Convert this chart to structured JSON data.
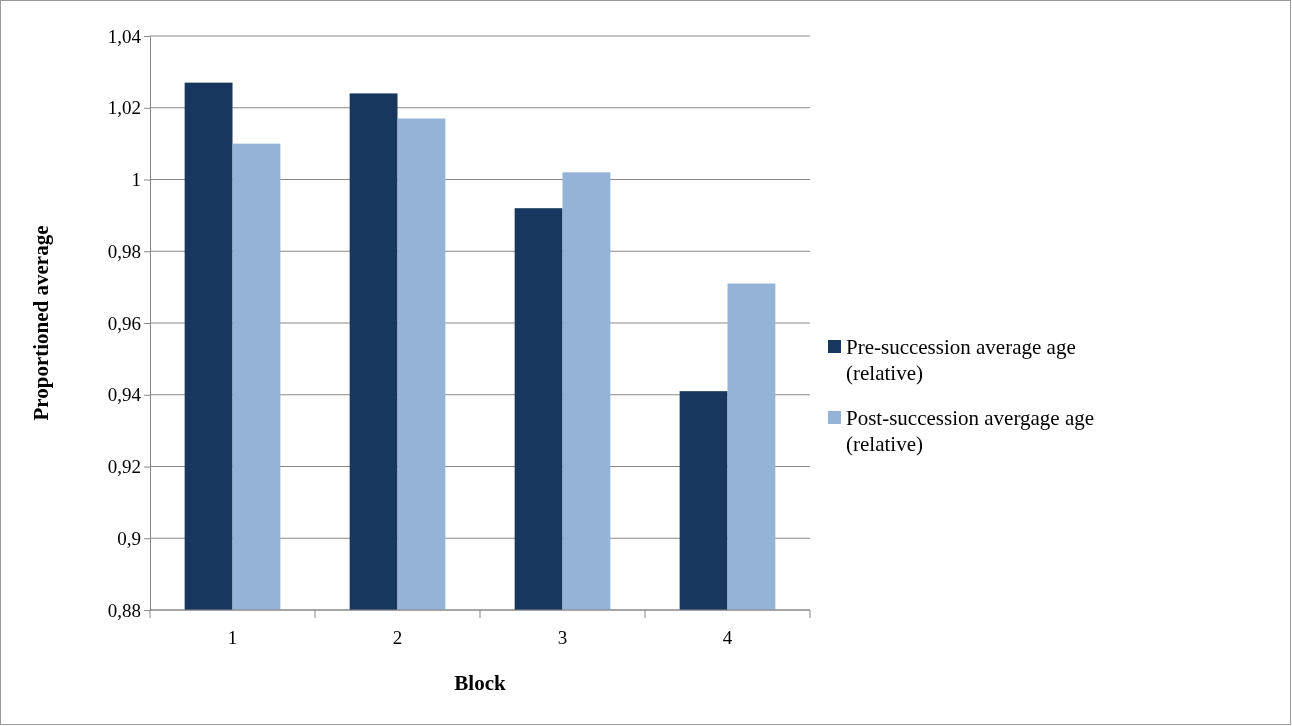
{
  "chart_data": {
    "type": "bar",
    "xlabel": "Block",
    "ylabel": "Proportioned average",
    "categories": [
      "1",
      "2",
      "3",
      "4"
    ],
    "series": [
      {
        "name": "Pre-succession average age (relative)",
        "color": "#17375e",
        "values": [
          1.027,
          1.024,
          0.992,
          0.941
        ]
      },
      {
        "name": "Post-succession avergage age (relative)",
        "color": "#95b3d7",
        "values": [
          1.01,
          1.017,
          1.002,
          0.971
        ]
      }
    ],
    "ylim": [
      0.88,
      1.04
    ],
    "yticks": [
      {
        "value": 0.88,
        "label": "0,88"
      },
      {
        "value": 0.9,
        "label": "0,9"
      },
      {
        "value": 0.92,
        "label": "0,92"
      },
      {
        "value": 0.94,
        "label": "0,94"
      },
      {
        "value": 0.96,
        "label": "0,96"
      },
      {
        "value": 0.98,
        "label": "0,98"
      },
      {
        "value": 1,
        "label": "1"
      },
      {
        "value": 1.02,
        "label": "1,02"
      },
      {
        "value": 1.04,
        "label": "1,04"
      }
    ],
    "grid": "y",
    "legend": "right"
  }
}
